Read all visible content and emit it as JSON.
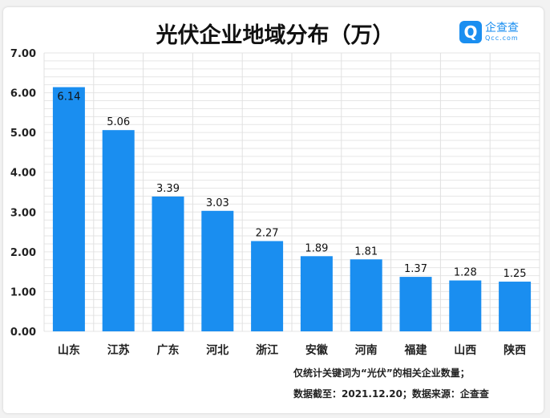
{
  "chart_data": {
    "type": "bar",
    "title": "光伏企业地域分布（万）",
    "categories": [
      "山东",
      "江苏",
      "广东",
      "河北",
      "浙江",
      "安徽",
      "河南",
      "福建",
      "山西",
      "陕西"
    ],
    "values": [
      6.14,
      5.06,
      3.39,
      3.03,
      2.27,
      1.89,
      1.81,
      1.37,
      1.28,
      1.25
    ],
    "ylim": [
      0,
      7
    ],
    "yticks": [
      "0.00",
      "1.00",
      "2.00",
      "3.00",
      "4.00",
      "5.00",
      "6.00",
      "7.00"
    ],
    "xlabel": "",
    "ylabel": "",
    "grid": true,
    "bar_color": "#1a8ef0"
  },
  "logo": {
    "cn": "企查查",
    "en": "Qcc.com"
  },
  "notes": [
    "仅统计关键词为“光伏”的相关企业数量；",
    "数据截至：2021.12.20；数据来源：企查查"
  ]
}
